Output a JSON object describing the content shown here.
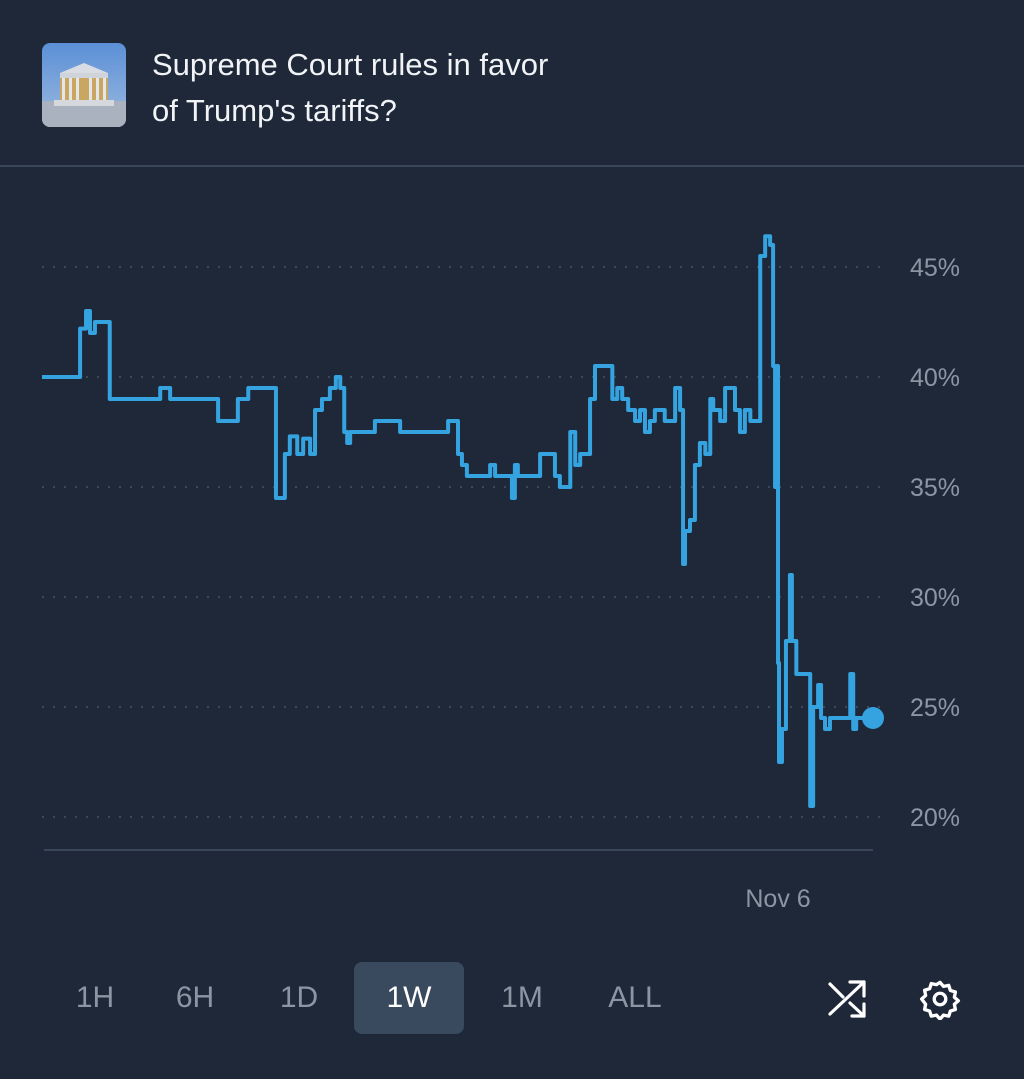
{
  "header": {
    "title_line1": "Supreme Court rules in favor",
    "title_line2": "of Trump's tariffs?",
    "thumbnail": "supreme-court-building-image"
  },
  "ranges": [
    {
      "label": "1H",
      "active": false
    },
    {
      "label": "6H",
      "active": false
    },
    {
      "label": "1D",
      "active": false
    },
    {
      "label": "1W",
      "active": true
    },
    {
      "label": "1M",
      "active": false
    },
    {
      "label": "ALL",
      "active": false
    }
  ],
  "icons": {
    "shuffle": "shuffle-icon",
    "settings": "gear-icon"
  },
  "colors": {
    "line": "#35a3e0",
    "background": "#1e2838",
    "active_range": "#3a4a5e"
  },
  "chart_data": {
    "type": "line",
    "title": "",
    "xlabel": "",
    "ylabel": "",
    "x_unit": "hours within the 1W window",
    "xlim": [
      0,
      168
    ],
    "ylim": [
      20,
      45
    ],
    "y_ticks": [
      "45%",
      "40%",
      "35%",
      "30%",
      "25%",
      "20%"
    ],
    "y_tick_values": [
      45,
      40,
      35,
      30,
      25,
      20
    ],
    "x_ticks": [
      {
        "label": "Nov 6",
        "t": 148.8
      }
    ],
    "grid": "horizontal dotted",
    "y_axis_side": "right",
    "series": [
      {
        "points": [
          [
            0,
            40
          ],
          [
            7.7,
            42.2
          ],
          [
            8.9,
            43
          ],
          [
            9.7,
            42
          ],
          [
            10.7,
            42.5
          ],
          [
            13.7,
            39
          ],
          [
            23.9,
            39.5
          ],
          [
            25.9,
            39
          ],
          [
            35.6,
            38
          ],
          [
            39.6,
            39
          ],
          [
            41.7,
            39.5
          ],
          [
            47.3,
            34.5
          ],
          [
            49.1,
            36.5
          ],
          [
            50.1,
            37.3
          ],
          [
            51.6,
            36.5
          ],
          [
            52.8,
            37.2
          ],
          [
            54.2,
            36.5
          ],
          [
            55.2,
            38.5
          ],
          [
            56.6,
            39
          ],
          [
            58.2,
            39.5
          ],
          [
            59.4,
            40
          ],
          [
            60.3,
            39.5
          ],
          [
            61.1,
            37.5
          ],
          [
            61.7,
            37
          ],
          [
            62.3,
            37.5
          ],
          [
            67.3,
            38
          ],
          [
            72.4,
            37.5
          ],
          [
            82.1,
            38
          ],
          [
            84.1,
            36.5
          ],
          [
            84.9,
            36
          ],
          [
            85.9,
            35.5
          ],
          [
            90.6,
            36
          ],
          [
            91.6,
            35.5
          ],
          [
            95,
            34.5
          ],
          [
            95.6,
            36
          ],
          [
            96.2,
            35.5
          ],
          [
            100.7,
            36.5
          ],
          [
            103.7,
            35.5
          ],
          [
            104.7,
            35
          ],
          [
            106.8,
            37.5
          ],
          [
            107.8,
            36
          ],
          [
            108.8,
            36.5
          ],
          [
            110.8,
            39
          ],
          [
            111.8,
            40.5
          ],
          [
            115.3,
            39
          ],
          [
            116.3,
            39.5
          ],
          [
            117.3,
            39
          ],
          [
            118.5,
            38.5
          ],
          [
            119.9,
            38
          ],
          [
            120.9,
            38.5
          ],
          [
            121.9,
            37.5
          ],
          [
            122.9,
            38
          ],
          [
            123.9,
            38.5
          ],
          [
            125.9,
            38
          ],
          [
            128,
            39.5
          ],
          [
            129,
            38.5
          ],
          [
            129.6,
            31.5
          ],
          [
            130,
            33
          ],
          [
            131,
            33.5
          ],
          [
            132,
            36
          ],
          [
            133,
            37
          ],
          [
            134.1,
            36.5
          ],
          [
            135.1,
            39
          ],
          [
            135.7,
            38.5
          ],
          [
            137.1,
            38
          ],
          [
            138.1,
            39.5
          ],
          [
            140.1,
            38.5
          ],
          [
            141.1,
            37.5
          ],
          [
            142.1,
            38.5
          ],
          [
            143.2,
            38
          ],
          [
            145.2,
            45.5
          ],
          [
            146.2,
            46.4
          ],
          [
            147.2,
            46
          ],
          [
            147.8,
            40.5
          ],
          [
            148.2,
            35
          ],
          [
            148.6,
            40.5
          ],
          [
            148.8,
            27
          ],
          [
            149,
            22.5
          ],
          [
            149.6,
            24
          ],
          [
            150.4,
            28
          ],
          [
            151.2,
            31
          ],
          [
            151.6,
            28
          ],
          [
            152.5,
            26.5
          ],
          [
            155.3,
            20.5
          ],
          [
            155.9,
            25
          ],
          [
            156.9,
            26
          ],
          [
            157.5,
            24.5
          ],
          [
            158.3,
            24
          ],
          [
            159.3,
            24.5
          ],
          [
            163.4,
            26.5
          ],
          [
            164,
            24
          ],
          [
            164.6,
            24.5
          ],
          [
            165.4,
            24.5
          ],
          [
            168,
            24.5
          ]
        ]
      }
    ],
    "last_value": 24.5
  }
}
